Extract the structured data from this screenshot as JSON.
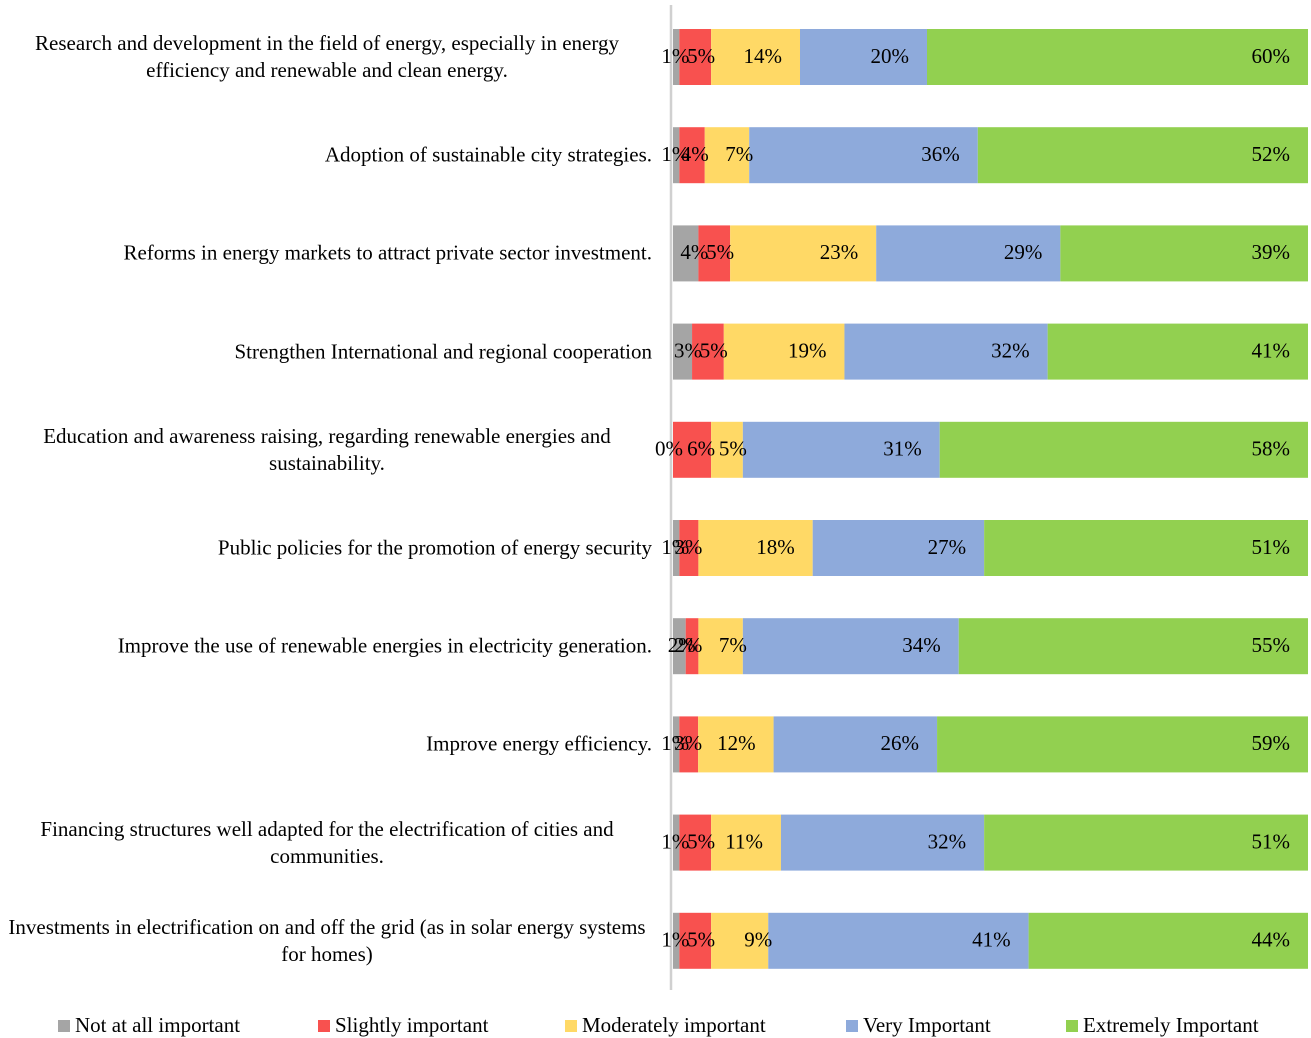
{
  "chart_data": {
    "type": "stacked-bar-horizontal",
    "categories": [
      "Research and development in the field of energy, especially in energy efficiency and renewable and clean energy.",
      "Adoption of sustainable city strategies.",
      "Reforms in energy markets to attract private sector investment.",
      "Strengthen International and regional cooperation",
      "Education and awareness raising, regarding renewable energies and sustainability.",
      "Public policies for the promotion of energy security",
      "Improve the use of renewable energies in electricity generation.",
      "Improve energy efficiency.",
      "Financing structures well adapted for the electrification of cities and communities.",
      "Investments in electrification on and off the grid (as in solar energy systems for homes)"
    ],
    "series": [
      {
        "name": "Not at all important",
        "color": "#a5a5a5",
        "values": [
          1,
          1,
          4,
          3,
          0,
          1,
          2,
          1,
          1,
          1
        ],
        "value_labels": [
          "1%",
          "1%",
          "4%",
          "3%",
          "0%",
          "1%",
          "2%",
          "1%",
          "1%",
          "1%"
        ]
      },
      {
        "name": "Slightly important",
        "color": "#f8514f",
        "values": [
          5,
          4,
          5,
          5,
          6,
          3,
          2,
          3,
          5,
          5
        ],
        "value_labels": [
          "5%",
          "4%",
          "5%",
          "5%",
          "6%",
          "3%",
          "2%",
          "3%",
          "5%",
          "5%"
        ]
      },
      {
        "name": "Moderately important",
        "color": "#ffd966",
        "values": [
          14,
          7,
          23,
          19,
          5,
          18,
          7,
          12,
          11,
          9
        ],
        "value_labels": [
          "14%",
          "7%",
          "23%",
          "19%",
          "5%",
          "18%",
          "7%",
          "12%",
          "11%",
          "9%"
        ]
      },
      {
        "name": "Very Important",
        "color": "#8eaadb",
        "values": [
          20,
          36,
          29,
          32,
          31,
          27,
          34,
          26,
          32,
          41
        ],
        "value_labels": [
          "20%",
          "36%",
          "29%",
          "32%",
          "31%",
          "27%",
          "34%",
          "26%",
          "32%",
          "41%"
        ]
      },
      {
        "name": "Extremely Important",
        "color": "#92d050",
        "values": [
          60,
          52,
          39,
          41,
          58,
          51,
          55,
          59,
          51,
          44
        ],
        "value_labels": [
          "60%",
          "52%",
          "39%",
          "41%",
          "58%",
          "51%",
          "55%",
          "59%",
          "51%",
          "44%"
        ]
      }
    ],
    "legend": "bottom"
  }
}
